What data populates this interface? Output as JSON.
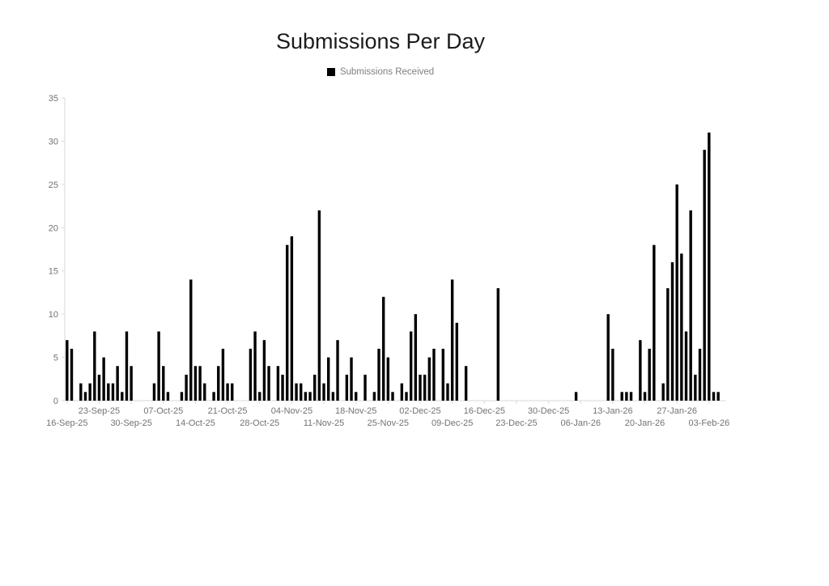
{
  "title": "Submissions Per Day",
  "legend": {
    "label": "Submissions Received",
    "marker_color": "#000000",
    "position": "top"
  },
  "colors": {
    "bar": "#000000",
    "axis_line": "#d9d9d9",
    "tick_label": "#737373",
    "title_text": "#1c1c1c",
    "legend_text": "#7f7f7f",
    "background": "#ffffff"
  },
  "chart_data": {
    "type": "bar",
    "title": "Submissions Per Day",
    "series_name": "Submissions Received",
    "ylim": [
      0,
      35
    ],
    "ytick_interval": 5,
    "yticks": [
      0,
      5,
      10,
      15,
      20,
      25,
      30,
      35
    ],
    "grid": false,
    "legend_position": "top",
    "xtick_labels_row1": [
      "23-Sep-25",
      "07-Oct-25",
      "21-Oct-25",
      "04-Nov-25",
      "18-Nov-25",
      "02-Dec-25",
      "16-Dec-25",
      "30-Dec-25",
      "13-Jan-26",
      "27-Jan-26"
    ],
    "xtick_labels_row2": [
      "16-Sep-25",
      "30-Sep-25",
      "14-Oct-25",
      "28-Oct-25",
      "11-Nov-25",
      "25-Nov-25",
      "09-Dec-25",
      "23-Dec-25",
      "06-Jan-26",
      "20-Jan-26",
      "03-Feb-26"
    ],
    "dates": [
      "16-Sep-25",
      "17-Sep-25",
      "18-Sep-25",
      "19-Sep-25",
      "20-Sep-25",
      "21-Sep-25",
      "22-Sep-25",
      "23-Sep-25",
      "24-Sep-25",
      "25-Sep-25",
      "26-Sep-25",
      "27-Sep-25",
      "28-Sep-25",
      "29-Sep-25",
      "30-Sep-25",
      "01-Oct-25",
      "02-Oct-25",
      "03-Oct-25",
      "04-Oct-25",
      "05-Oct-25",
      "06-Oct-25",
      "07-Oct-25",
      "08-Oct-25",
      "09-Oct-25",
      "10-Oct-25",
      "11-Oct-25",
      "12-Oct-25",
      "13-Oct-25",
      "14-Oct-25",
      "15-Oct-25",
      "16-Oct-25",
      "17-Oct-25",
      "18-Oct-25",
      "19-Oct-25",
      "20-Oct-25",
      "21-Oct-25",
      "22-Oct-25",
      "23-Oct-25",
      "24-Oct-25",
      "25-Oct-25",
      "26-Oct-25",
      "27-Oct-25",
      "28-Oct-25",
      "29-Oct-25",
      "30-Oct-25",
      "31-Oct-25",
      "01-Nov-25",
      "02-Nov-25",
      "03-Nov-25",
      "04-Nov-25",
      "05-Nov-25",
      "06-Nov-25",
      "07-Nov-25",
      "08-Nov-25",
      "09-Nov-25",
      "10-Nov-25",
      "11-Nov-25",
      "12-Nov-25",
      "13-Nov-25",
      "14-Nov-25",
      "15-Nov-25",
      "16-Nov-25",
      "17-Nov-25",
      "18-Nov-25",
      "19-Nov-25",
      "20-Nov-25",
      "21-Nov-25",
      "22-Nov-25",
      "23-Nov-25",
      "24-Nov-25",
      "25-Nov-25",
      "26-Nov-25",
      "27-Nov-25",
      "28-Nov-25",
      "29-Nov-25",
      "30-Nov-25",
      "01-Dec-25",
      "02-Dec-25",
      "03-Dec-25",
      "04-Dec-25",
      "05-Dec-25",
      "06-Dec-25",
      "07-Dec-25",
      "08-Dec-25",
      "09-Dec-25",
      "10-Dec-25",
      "11-Dec-25",
      "12-Dec-25",
      "13-Dec-25",
      "14-Dec-25",
      "15-Dec-25",
      "16-Dec-25",
      "17-Dec-25",
      "18-Dec-25",
      "19-Dec-25",
      "20-Dec-25",
      "21-Dec-25",
      "22-Dec-25",
      "23-Dec-25",
      "24-Dec-25",
      "25-Dec-25",
      "26-Dec-25",
      "27-Dec-25",
      "28-Dec-25",
      "29-Dec-25",
      "30-Dec-25",
      "31-Dec-25",
      "01-Jan-26",
      "02-Jan-26",
      "03-Jan-26",
      "04-Jan-26",
      "05-Jan-26",
      "06-Jan-26",
      "07-Jan-26",
      "08-Jan-26",
      "09-Jan-26",
      "10-Jan-26",
      "11-Jan-26",
      "12-Jan-26",
      "13-Jan-26",
      "14-Jan-26",
      "15-Jan-26",
      "16-Jan-26",
      "17-Jan-26",
      "18-Jan-26",
      "19-Jan-26",
      "20-Jan-26",
      "21-Jan-26",
      "22-Jan-26",
      "23-Jan-26",
      "24-Jan-26",
      "25-Jan-26",
      "26-Jan-26",
      "27-Jan-26",
      "28-Jan-26",
      "29-Jan-26",
      "30-Jan-26",
      "31-Jan-26",
      "01-Feb-26",
      "02-Feb-26",
      "03-Feb-26",
      "04-Feb-26",
      "05-Feb-26"
    ],
    "values": [
      7,
      6,
      0,
      2,
      1,
      2,
      8,
      3,
      5,
      2,
      2,
      4,
      1,
      8,
      4,
      0,
      0,
      0,
      0,
      2,
      8,
      4,
      1,
      0,
      0,
      1,
      3,
      14,
      4,
      4,
      2,
      0,
      1,
      4,
      6,
      2,
      2,
      0,
      0,
      0,
      6,
      8,
      1,
      7,
      4,
      0,
      4,
      3,
      18,
      19,
      2,
      2,
      1,
      1,
      3,
      22,
      2,
      5,
      1,
      7,
      0,
      3,
      5,
      1,
      0,
      3,
      0,
      1,
      6,
      12,
      5,
      1,
      0,
      2,
      1,
      8,
      10,
      3,
      3,
      5,
      6,
      0,
      6,
      2,
      14,
      9,
      0,
      4,
      0,
      0,
      0,
      0,
      0,
      0,
      13,
      0,
      0,
      0,
      0,
      0,
      0,
      0,
      0,
      0,
      0,
      0,
      0,
      0,
      0,
      0,
      0,
      1,
      0,
      0,
      0,
      0,
      0,
      0,
      10,
      6,
      0,
      1,
      1,
      1,
      0,
      7,
      1,
      6,
      18,
      0,
      2,
      13,
      16,
      25,
      17,
      8,
      22,
      3,
      6,
      29,
      31,
      1,
      1
    ]
  }
}
